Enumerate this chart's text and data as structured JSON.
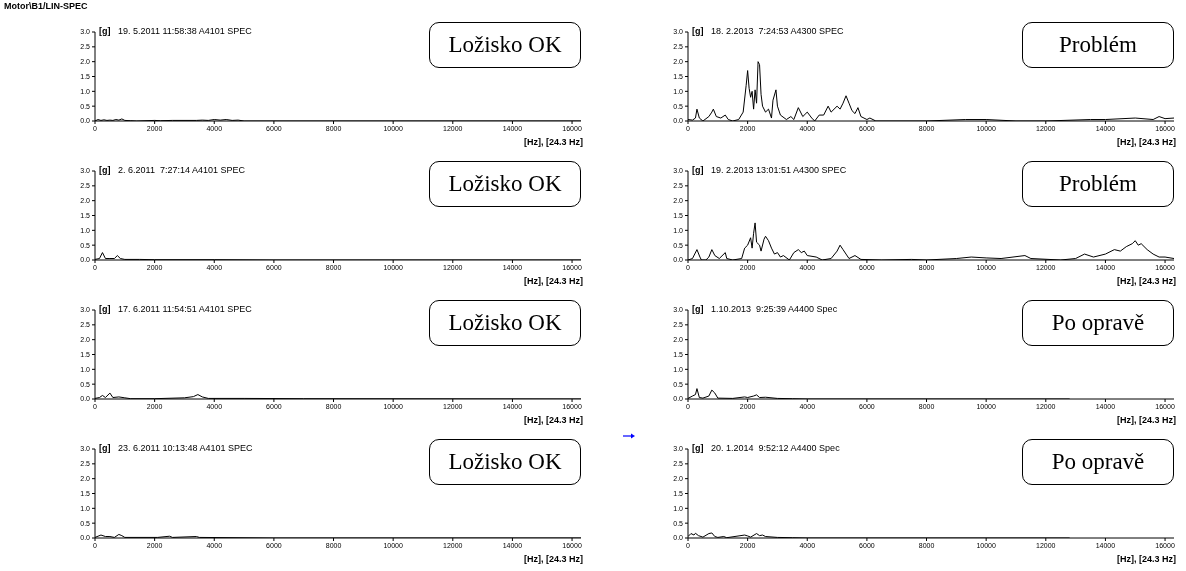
{
  "chart_data": [
    {
      "type": "line",
      "subtitle": "Motor\\B1/LIN-SPEC",
      "title": "19. 5.2011 11:58:38 A4101 SPEC",
      "ylabel": "[g]",
      "xlabel": "[Hz], [24.3 Hz]",
      "annotations": [
        "Ložisko OK"
      ],
      "color": "#000000",
      "xlim": [
        0,
        16300
      ],
      "xticks": [
        0,
        2000,
        4000,
        6000,
        8000,
        10000,
        12000,
        14000,
        16000
      ],
      "ylim": [
        0,
        3
      ],
      "yticks": [
        {
          "value": 0,
          "label": "0.0"
        },
        {
          "value": 0.5,
          "label": "0.5"
        },
        {
          "value": 1,
          "label": "1.0"
        },
        {
          "value": 1.5,
          "label": "1.5"
        },
        {
          "value": 2,
          "label": "2.0"
        },
        {
          "value": 2.5,
          "label": "2.5"
        },
        {
          "value": 3,
          "label": "3.0"
        }
      ],
      "x": [
        0,
        100,
        200,
        300,
        400,
        500,
        600,
        700,
        800,
        900,
        1000,
        1200,
        1400,
        2000,
        2200,
        2600,
        3400,
        3600,
        3800,
        4000,
        4200,
        4400,
        4600,
        4800,
        5000,
        6000,
        8000,
        10000,
        12000,
        14000,
        16300
      ],
      "values": [
        0,
        0.05,
        0.02,
        0.04,
        0.02,
        0.03,
        0.02,
        0.05,
        0.03,
        0.07,
        0.02,
        0.01,
        0,
        0.02,
        0.01,
        0.02,
        0.02,
        0.03,
        0.02,
        0.05,
        0.03,
        0.05,
        0.02,
        0.03,
        0,
        0,
        0,
        0,
        0,
        0,
        0
      ]
    },
    {
      "type": "line",
      "title": "18. 2.2013  7:24:53 A4300 SPEC",
      "ylabel": "[g]",
      "xlabel": "[Hz], [24.3 Hz]",
      "annotations": [
        "Problém"
      ],
      "color": "#000000",
      "xlim": [
        0,
        16300
      ],
      "xticks": [
        0,
        2000,
        4000,
        6000,
        8000,
        10000,
        12000,
        14000,
        16000
      ],
      "ylim": [
        0,
        3
      ],
      "yticks": [
        {
          "value": 0,
          "label": "0.0"
        },
        {
          "value": 0.5,
          "label": "0.5"
        },
        {
          "value": 1,
          "label": "1.0"
        },
        {
          "value": 1.5,
          "label": "1.5"
        },
        {
          "value": 2,
          "label": "2.0"
        },
        {
          "value": 2.5,
          "label": "2.5"
        },
        {
          "value": 3,
          "label": "3.0"
        }
      ],
      "x": [
        0,
        150,
        250,
        300,
        380,
        500,
        700,
        800,
        850,
        950,
        1100,
        1250,
        1350,
        1500,
        1700,
        1850,
        1950,
        2000,
        2050,
        2100,
        2150,
        2200,
        2250,
        2300,
        2350,
        2400,
        2450,
        2500,
        2600,
        2700,
        2800,
        2850,
        2950,
        3000,
        3100,
        3300,
        3450,
        3550,
        3700,
        3850,
        4000,
        4150,
        4250,
        4400,
        4550,
        4700,
        4800,
        5000,
        5100,
        5200,
        5300,
        5400,
        5500,
        5600,
        5700,
        5800,
        6000,
        6100,
        6300,
        8000,
        9300,
        10000,
        11000,
        12000,
        13500,
        14000,
        15000,
        15600,
        15800,
        16000,
        16300
      ],
      "values": [
        0.05,
        0.03,
        0.1,
        0.4,
        0.1,
        0,
        0.15,
        0.3,
        0.4,
        0.15,
        0.1,
        0.2,
        0.05,
        0,
        0.05,
        0.3,
        1.2,
        1.7,
        1.1,
        0.8,
        1.0,
        0.4,
        1.05,
        0.6,
        2.0,
        1.9,
        0.9,
        0.5,
        0.3,
        0.4,
        0.1,
        0.7,
        1.05,
        0.5,
        0.2,
        0.05,
        0.15,
        0.05,
        0.45,
        0.15,
        0.3,
        0.1,
        0,
        0.2,
        0.2,
        0.5,
        0.3,
        0.5,
        0.4,
        0.6,
        0.85,
        0.6,
        0.35,
        0.25,
        0.45,
        0.15,
        0.05,
        0.1,
        0,
        0,
        0.05,
        0.05,
        0,
        0,
        0.05,
        0.05,
        0.1,
        0.05,
        0.15,
        0.08,
        0.1
      ]
    },
    {
      "type": "line",
      "title": "2. 6.2011  7:27:14 A4101 SPEC",
      "ylabel": "[g]",
      "xlabel": "[Hz], [24.3 Hz]",
      "annotations": [
        "Ložisko OK"
      ],
      "color": "#000000",
      "xlim": [
        0,
        16300
      ],
      "xticks": [
        0,
        2000,
        4000,
        6000,
        8000,
        10000,
        12000,
        14000,
        16000
      ],
      "ylim": [
        0,
        3
      ],
      "yticks": [
        {
          "value": 0,
          "label": "0.0"
        },
        {
          "value": 0.5,
          "label": "0.5"
        },
        {
          "value": 1,
          "label": "1.0"
        },
        {
          "value": 1.5,
          "label": "1.5"
        },
        {
          "value": 2,
          "label": "2.0"
        },
        {
          "value": 2.5,
          "label": "2.5"
        },
        {
          "value": 3,
          "label": "3.0"
        }
      ],
      "x": [
        0,
        150,
        250,
        350,
        500,
        650,
        750,
        850,
        1000,
        1500,
        2000,
        4000,
        6000,
        16300
      ],
      "values": [
        0.02,
        0.05,
        0.25,
        0.05,
        0.05,
        0.05,
        0.15,
        0.05,
        0.02,
        0.02,
        0.01,
        0.01,
        0,
        0
      ]
    },
    {
      "type": "line",
      "title": "19. 2.2013 13:01:51 A4300 SPEC",
      "ylabel": "[g]",
      "xlabel": "[Hz], [24.3 Hz]",
      "annotations": [
        "Problém"
      ],
      "color": "#000000",
      "xlim": [
        0,
        16300
      ],
      "xticks": [
        0,
        2000,
        4000,
        6000,
        8000,
        10000,
        12000,
        14000,
        16000
      ],
      "ylim": [
        0,
        3
      ],
      "yticks": [
        {
          "value": 0,
          "label": "0.0"
        },
        {
          "value": 0.5,
          "label": "0.5"
        },
        {
          "value": 1,
          "label": "1.0"
        },
        {
          "value": 1.5,
          "label": "1.5"
        },
        {
          "value": 2,
          "label": "2.0"
        },
        {
          "value": 2.5,
          "label": "2.5"
        },
        {
          "value": 3,
          "label": "3.0"
        }
      ],
      "x": [
        0,
        150,
        300,
        400,
        450,
        600,
        700,
        800,
        900,
        1050,
        1250,
        1300,
        1500,
        1800,
        1900,
        2000,
        2100,
        2150,
        2200,
        2250,
        2300,
        2400,
        2450,
        2550,
        2600,
        2700,
        2800,
        2900,
        3000,
        3100,
        3200,
        3400,
        3550,
        3700,
        3800,
        3900,
        4000,
        4300,
        4500,
        4800,
        5000,
        5100,
        5200,
        5300,
        5400,
        5600,
        5800,
        6500,
        7500,
        8000,
        9000,
        9500,
        10000,
        10500,
        11300,
        11500,
        12500,
        13000,
        13300,
        13600,
        14000,
        14300,
        14500,
        14700,
        14900,
        15000,
        15100,
        15200,
        15400,
        15600,
        15800,
        16000,
        16300
      ],
      "values": [
        0,
        0.05,
        0.35,
        0.1,
        0,
        0,
        0.1,
        0.35,
        0.15,
        0.05,
        0.25,
        0.05,
        0,
        0.05,
        0.4,
        0.5,
        0.75,
        0.4,
        0.9,
        1.25,
        0.6,
        0.5,
        0.3,
        0.7,
        0.8,
        0.65,
        0.4,
        0.2,
        0.25,
        0.1,
        0.15,
        0,
        0.25,
        0.35,
        0.25,
        0.3,
        0.15,
        0.1,
        0,
        0.05,
        0.3,
        0.5,
        0.35,
        0.2,
        0.05,
        0.15,
        0.02,
        0,
        0.02,
        0,
        0.05,
        0.1,
        0.07,
        0.05,
        0.15,
        0.05,
        0,
        0.05,
        0.2,
        0.1,
        0.2,
        0.35,
        0.3,
        0.45,
        0.55,
        0.65,
        0.5,
        0.55,
        0.35,
        0.2,
        0.1,
        0.1,
        0.05
      ]
    },
    {
      "type": "line",
      "title": "17. 6.2011 11:54:51 A4101 SPEC",
      "ylabel": "[g]",
      "xlabel": "[Hz], [24.3 Hz]",
      "annotations": [
        "Ložisko OK"
      ],
      "color": "#000000",
      "xlim": [
        0,
        16300
      ],
      "xticks": [
        0,
        2000,
        4000,
        6000,
        8000,
        10000,
        12000,
        14000,
        16000
      ],
      "ylim": [
        0,
        3
      ],
      "yticks": [
        {
          "value": 0,
          "label": "0.0"
        },
        {
          "value": 0.5,
          "label": "0.5"
        },
        {
          "value": 1,
          "label": "1.0"
        },
        {
          "value": 1.5,
          "label": "1.5"
        },
        {
          "value": 2,
          "label": "2.0"
        },
        {
          "value": 2.5,
          "label": "2.5"
        },
        {
          "value": 3,
          "label": "3.0"
        }
      ],
      "x": [
        0,
        150,
        250,
        350,
        500,
        600,
        800,
        1000,
        1200,
        2000,
        3000,
        3300,
        3450,
        3600,
        3800,
        5000,
        7000,
        16300
      ],
      "values": [
        0.02,
        0.05,
        0.12,
        0.05,
        0.2,
        0.05,
        0.07,
        0.04,
        0.01,
        0.01,
        0.04,
        0.08,
        0.15,
        0.07,
        0.02,
        0.02,
        0.01,
        0
      ]
    },
    {
      "type": "line",
      "title": "1.10.2013  9:25:39 A4400 Spec",
      "ylabel": "[g]",
      "xlabel": "[Hz], [24.3 Hz]",
      "annotations": [
        "Po opravě"
      ],
      "color": "#000000",
      "xlim": [
        0,
        16300
      ],
      "xticks": [
        0,
        2000,
        4000,
        6000,
        8000,
        10000,
        12000,
        14000,
        16000
      ],
      "ylim": [
        0,
        3
      ],
      "yticks": [
        {
          "value": 0,
          "label": "0.0"
        },
        {
          "value": 0.5,
          "label": "0.5"
        },
        {
          "value": 1,
          "label": "1.0"
        },
        {
          "value": 1.5,
          "label": "1.5"
        },
        {
          "value": 2,
          "label": "2.0"
        },
        {
          "value": 2.5,
          "label": "2.5"
        },
        {
          "value": 3,
          "label": "3.0"
        }
      ],
      "x": [
        0,
        150,
        250,
        300,
        380,
        500,
        700,
        800,
        900,
        1000,
        1500,
        1900,
        2000,
        2200,
        2300,
        2400,
        2600,
        3000,
        3500,
        4000,
        12800
      ],
      "values": [
        0.02,
        0.1,
        0.15,
        0.35,
        0.05,
        0.03,
        0.1,
        0.3,
        0.2,
        0.03,
        0.02,
        0.07,
        0.05,
        0.1,
        0.14,
        0.05,
        0.06,
        0.02,
        0.01,
        0,
        0
      ]
    },
    {
      "type": "line",
      "title": "23. 6.2011 10:13:48 A4101 SPEC",
      "ylabel": "[g]",
      "xlabel": "[Hz], [24.3 Hz]",
      "annotations": [
        "Ložisko OK"
      ],
      "color": "#000000",
      "xlim": [
        0,
        16300
      ],
      "xticks": [
        0,
        2000,
        4000,
        6000,
        8000,
        10000,
        12000,
        14000,
        16000
      ],
      "ylim": [
        0,
        3
      ],
      "yticks": [
        {
          "value": 0,
          "label": "0.0"
        },
        {
          "value": 0.5,
          "label": "0.5"
        },
        {
          "value": 1,
          "label": "1.0"
        },
        {
          "value": 1.5,
          "label": "1.5"
        },
        {
          "value": 2,
          "label": "2.0"
        },
        {
          "value": 2.5,
          "label": "2.5"
        },
        {
          "value": 3,
          "label": "3.0"
        }
      ],
      "x": [
        0,
        200,
        350,
        500,
        650,
        800,
        900,
        1000,
        2100,
        2500,
        2600,
        3400,
        3500,
        6000,
        16300
      ],
      "values": [
        0.02,
        0.1,
        0.05,
        0.05,
        0.02,
        0.12,
        0.08,
        0.02,
        0.02,
        0.06,
        0.02,
        0.05,
        0.02,
        0,
        0
      ]
    },
    {
      "type": "line",
      "title": "20. 1.2014  9:52:12 A4400 Spec",
      "ylabel": "[g]",
      "xlabel": "[Hz], [24.3 Hz]",
      "annotations": [
        "Po opravě"
      ],
      "color": "#000000",
      "xlim": [
        0,
        16300
      ],
      "xticks": [
        0,
        2000,
        4000,
        6000,
        8000,
        10000,
        12000,
        14000,
        16000
      ],
      "ylim": [
        0,
        3
      ],
      "yticks": [
        {
          "value": 0,
          "label": "0.0"
        },
        {
          "value": 0.5,
          "label": "0.5"
        },
        {
          "value": 1,
          "label": "1.0"
        },
        {
          "value": 1.5,
          "label": "1.5"
        },
        {
          "value": 2,
          "label": "2.0"
        },
        {
          "value": 2.5,
          "label": "2.5"
        },
        {
          "value": 3,
          "label": "3.0"
        }
      ],
      "x": [
        0,
        100,
        200,
        250,
        350,
        500,
        700,
        800,
        900,
        1000,
        1200,
        1300,
        1900,
        2000,
        2100,
        2300,
        2400,
        2500,
        2600,
        3000,
        3500,
        4000,
        12800
      ],
      "values": [
        0.05,
        0.15,
        0.1,
        0.16,
        0.08,
        0.03,
        0.15,
        0.17,
        0.05,
        0.02,
        0.05,
        0.01,
        0.1,
        0.07,
        0.03,
        0.15,
        0.08,
        0.1,
        0.05,
        0.02,
        0.01,
        0,
        0
      ]
    }
  ]
}
